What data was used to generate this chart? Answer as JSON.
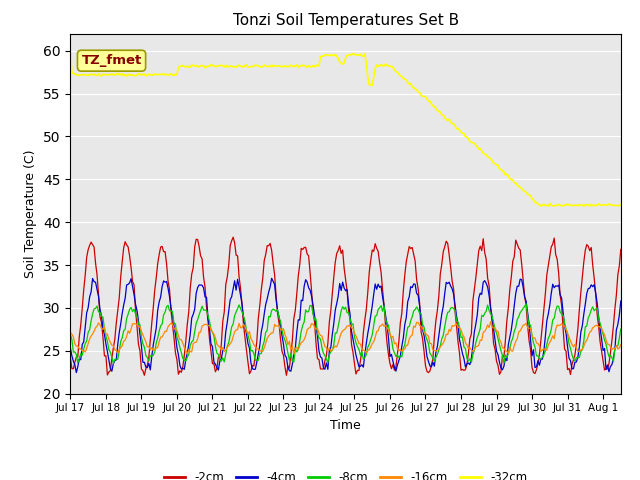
{
  "title": "Tonzi Soil Temperatures Set B",
  "xlabel": "Time",
  "ylabel": "Soil Temperature (C)",
  "ylim": [
    20,
    62
  ],
  "xlim": [
    0,
    15.5
  ],
  "yticks": [
    20,
    25,
    30,
    35,
    40,
    45,
    50,
    55,
    60
  ],
  "xtick_labels": [
    "Jul 17",
    "Jul 18",
    "Jul 19",
    "Jul 20",
    "Jul 21",
    "Jul 22",
    "Jul 23",
    "Jul 24",
    "Jul 25",
    "Jul 26",
    "Jul 27",
    "Jul 28",
    "Jul 29",
    "Jul 30",
    "Jul 31",
    "Aug 1"
  ],
  "xtick_positions": [
    0,
    1,
    2,
    3,
    4,
    5,
    6,
    7,
    8,
    9,
    10,
    11,
    12,
    13,
    14,
    15
  ],
  "colors": {
    "-2cm": "#cc0000",
    "-4cm": "#0000cc",
    "-8cm": "#00cc00",
    "-16cm": "#ff8800",
    "-32cm": "#ffff00"
  },
  "legend_labels": [
    "-2cm",
    "-4cm",
    "-8cm",
    "-16cm",
    "-32cm"
  ],
  "background_color": "#e8e8e8",
  "annotation_text": "TZ_fmet",
  "annotation_box_facecolor": "#ffff99",
  "annotation_box_edgecolor": "#999900",
  "annotation_text_color": "#880000",
  "figsize": [
    6.4,
    4.8
  ],
  "dpi": 100
}
